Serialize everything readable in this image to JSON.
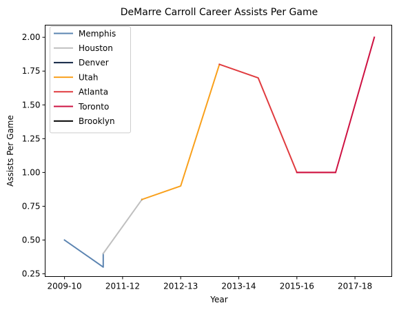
{
  "chart_data": {
    "type": "line",
    "title": "DeMarre Carroll Career Assists Per Game",
    "xlabel": "Year",
    "ylabel": "Assists Per Game",
    "xlim": [
      -0.5,
      8.45
    ],
    "ylim": [
      0.23,
      2.09
    ],
    "grid": false,
    "legend_position": "top-left",
    "x_ticks": [
      {
        "pos": 0,
        "label": "2009-10"
      },
      {
        "pos": 1.5,
        "label": "2011-12"
      },
      {
        "pos": 3,
        "label": "2012-13"
      },
      {
        "pos": 4.5,
        "label": "2013-14"
      },
      {
        "pos": 6,
        "label": "2015-16"
      },
      {
        "pos": 7.5,
        "label": "2017-18"
      }
    ],
    "y_ticks": [
      0.25,
      0.5,
      0.75,
      1.0,
      1.25,
      1.5,
      1.75,
      2.0
    ],
    "y_tick_labels": [
      "0.25",
      "0.50",
      "0.75",
      "1.00",
      "1.25",
      "1.50",
      "1.75",
      "2.00"
    ],
    "series": [
      {
        "name": "Memphis",
        "color": "#5b84b1",
        "points": [
          [
            0,
            0.5
          ],
          [
            1,
            0.3
          ],
          [
            1,
            0.4
          ]
        ]
      },
      {
        "name": "Houston",
        "color": "#bfbfbf",
        "points": [
          [
            1,
            0.4
          ],
          [
            2,
            0.8
          ]
        ]
      },
      {
        "name": "Denver",
        "color": "#0e2240",
        "points": [
          [
            2,
            0.8
          ],
          [
            2,
            0.8
          ]
        ]
      },
      {
        "name": "Utah",
        "color": "#f9a01b",
        "points": [
          [
            2,
            0.8
          ],
          [
            3,
            0.9
          ],
          [
            4,
            1.8
          ]
        ]
      },
      {
        "name": "Atlanta",
        "color": "#e03a3e",
        "points": [
          [
            4,
            1.8
          ],
          [
            5,
            1.7
          ],
          [
            6,
            1.0
          ],
          [
            7,
            1.0
          ]
        ]
      },
      {
        "name": "Toronto",
        "color": "#ce1141",
        "points": [
          [
            6,
            1.0
          ],
          [
            7,
            1.0
          ],
          [
            8,
            2.0
          ]
        ]
      },
      {
        "name": "Brooklyn",
        "color": "#000000",
        "points": []
      }
    ]
  }
}
